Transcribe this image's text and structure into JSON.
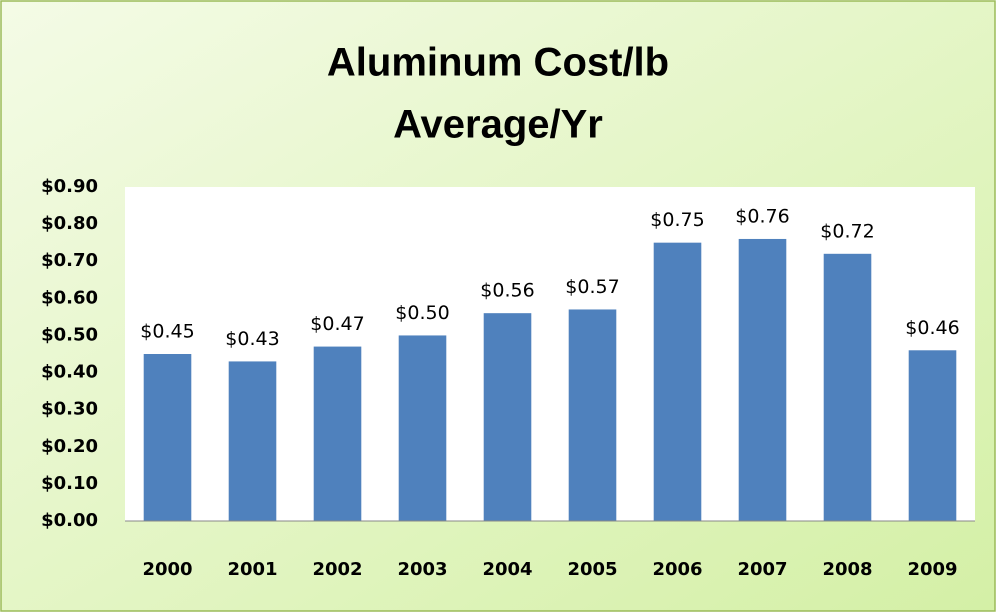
{
  "chart_data": {
    "type": "bar",
    "title": [
      "Aluminum Cost/lb",
      "Average/Yr"
    ],
    "categories": [
      "2000",
      "2001",
      "2002",
      "2003",
      "2004",
      "2005",
      "2006",
      "2007",
      "2008",
      "2009"
    ],
    "values": [
      0.45,
      0.43,
      0.47,
      0.5,
      0.56,
      0.57,
      0.75,
      0.76,
      0.72,
      0.46
    ],
    "value_labels": [
      "$0.45",
      "$0.43",
      "$0.47",
      "$0.50",
      "$0.56",
      "$0.57",
      "$0.75",
      "$0.76",
      "$0.72",
      "$0.46"
    ],
    "color": "#4f81bd",
    "ylim": [
      0,
      0.9
    ],
    "yticks": [
      {
        "value": 0,
        "label": "$0.00"
      },
      {
        "value": 0.1,
        "label": "$0.10"
      },
      {
        "value": 0.2,
        "label": "$0.20"
      },
      {
        "value": 0.3,
        "label": "$0.30"
      },
      {
        "value": 0.4,
        "label": "$0.40"
      },
      {
        "value": 0.5,
        "label": "$0.50"
      },
      {
        "value": 0.6,
        "label": "$0.60"
      },
      {
        "value": 0.7,
        "label": "$0.70"
      },
      {
        "value": 0.8,
        "label": "$0.80"
      },
      {
        "value": 0.9,
        "label": "$0.90"
      }
    ],
    "grid": false
  }
}
